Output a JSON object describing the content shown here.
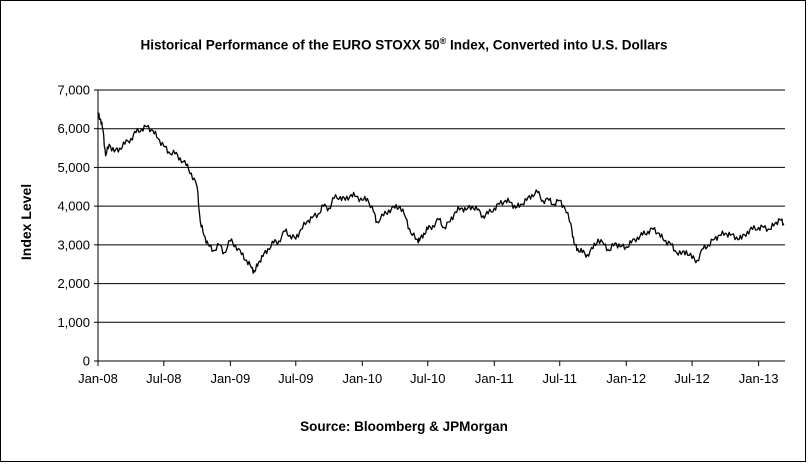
{
  "chart_data": {
    "type": "line",
    "title_main": "Historical Performance of the EURO STOXX 50",
    "title_mark": "®",
    "title_rest": " Index, Converted into U.S. Dollars",
    "xlabel": "",
    "ylabel": "Index Level",
    "source": "Source: Bloomberg & JPMorgan",
    "ylim": [
      0,
      7000
    ],
    "yticks": [
      0,
      1000,
      2000,
      3000,
      4000,
      5000,
      6000,
      7000
    ],
    "ytick_labels": [
      "0",
      "1,000",
      "2,000",
      "3,000",
      "4,000",
      "5,000",
      "6,000",
      "7,000"
    ],
    "xlim": [
      "2008-01-01",
      "2013-03-15"
    ],
    "xticks": [
      "2008-01-01",
      "2008-07-01",
      "2009-01-01",
      "2009-07-01",
      "2010-01-01",
      "2010-07-01",
      "2011-01-01",
      "2011-07-01",
      "2012-01-01",
      "2012-07-01",
      "2013-01-01"
    ],
    "xtick_labels": [
      "Jan-08",
      "Jul-08",
      "Jan-09",
      "Jul-09",
      "Jan-10",
      "Jul-10",
      "Jan-11",
      "Jul-11",
      "Jan-12",
      "Jul-12",
      "Jan-13"
    ],
    "grid": "horizontal",
    "line_color": "#000000",
    "series": [
      {
        "x": [
          "2008-01-02",
          "2008-01-08",
          "2008-01-15",
          "2008-01-22",
          "2008-02-01",
          "2008-02-15",
          "2008-03-01",
          "2008-03-15",
          "2008-04-01",
          "2008-04-15",
          "2008-05-01",
          "2008-05-15",
          "2008-06-01",
          "2008-06-15",
          "2008-07-01",
          "2008-07-15",
          "2008-08-01",
          "2008-08-15",
          "2008-09-01",
          "2008-09-15",
          "2008-10-01",
          "2008-10-10",
          "2008-10-20",
          "2008-11-01",
          "2008-11-15",
          "2008-12-01",
          "2008-12-15",
          "2009-01-01",
          "2009-01-15",
          "2009-02-01",
          "2009-02-15",
          "2009-03-01",
          "2009-03-09",
          "2009-03-20",
          "2009-04-01",
          "2009-04-15",
          "2009-05-01",
          "2009-05-15",
          "2009-06-01",
          "2009-06-15",
          "2009-07-01",
          "2009-07-15",
          "2009-08-01",
          "2009-08-15",
          "2009-09-01",
          "2009-09-15",
          "2009-10-01",
          "2009-10-15",
          "2009-11-01",
          "2009-11-15",
          "2009-12-01",
          "2009-12-15",
          "2010-01-01",
          "2010-01-15",
          "2010-02-01",
          "2010-02-10",
          "2010-03-01",
          "2010-03-15",
          "2010-04-01",
          "2010-04-15",
          "2010-05-01",
          "2010-05-15",
          "2010-06-01",
          "2010-06-08",
          "2010-06-20",
          "2010-07-01",
          "2010-07-15",
          "2010-08-01",
          "2010-08-15",
          "2010-09-01",
          "2010-09-15",
          "2010-10-01",
          "2010-10-15",
          "2010-11-01",
          "2010-11-15",
          "2010-12-01",
          "2010-12-15",
          "2011-01-01",
          "2011-01-15",
          "2011-02-01",
          "2011-02-15",
          "2011-03-01",
          "2011-03-15",
          "2011-04-01",
          "2011-04-15",
          "2011-05-01",
          "2011-05-15",
          "2011-06-01",
          "2011-06-15",
          "2011-07-01",
          "2011-07-15",
          "2011-08-01",
          "2011-08-10",
          "2011-08-20",
          "2011-09-01",
          "2011-09-15",
          "2011-10-01",
          "2011-10-15",
          "2011-11-01",
          "2011-11-15",
          "2011-12-01",
          "2011-12-15",
          "2012-01-01",
          "2012-01-15",
          "2012-02-01",
          "2012-02-15",
          "2012-03-01",
          "2012-03-15",
          "2012-04-01",
          "2012-04-15",
          "2012-05-01",
          "2012-05-15",
          "2012-06-01",
          "2012-06-15",
          "2012-07-01",
          "2012-07-15",
          "2012-08-01",
          "2012-08-15",
          "2012-09-01",
          "2012-09-15",
          "2012-10-01",
          "2012-10-15",
          "2012-11-01",
          "2012-11-15",
          "2012-12-01",
          "2012-12-15",
          "2013-01-01",
          "2013-01-15",
          "2013-02-01",
          "2013-02-15",
          "2013-03-01",
          "2013-03-12"
        ],
        "values": [
          6350,
          6250,
          5950,
          5300,
          5600,
          5400,
          5500,
          5600,
          5750,
          5900,
          6000,
          6050,
          5950,
          5750,
          5550,
          5400,
          5350,
          5250,
          5050,
          4850,
          4500,
          3600,
          3250,
          3000,
          2850,
          3000,
          2800,
          3100,
          3000,
          2750,
          2600,
          2400,
          2300,
          2550,
          2700,
          2900,
          3050,
          3100,
          3350,
          3250,
          3150,
          3400,
          3600,
          3700,
          3800,
          4000,
          3950,
          4200,
          4250,
          4150,
          4300,
          4250,
          4150,
          4200,
          3850,
          3600,
          3750,
          3900,
          3950,
          4000,
          3700,
          3300,
          3150,
          3100,
          3300,
          3400,
          3500,
          3650,
          3450,
          3600,
          3850,
          3950,
          3900,
          4000,
          3900,
          3750,
          3800,
          3950,
          4050,
          4150,
          4100,
          3950,
          4050,
          4150,
          4300,
          4350,
          4150,
          4150,
          4050,
          4150,
          3950,
          3550,
          3000,
          2900,
          2800,
          2750,
          2900,
          3150,
          3000,
          2850,
          3050,
          2950,
          2950,
          3050,
          3200,
          3250,
          3350,
          3400,
          3300,
          3100,
          3050,
          2850,
          2750,
          2850,
          2650,
          2600,
          2900,
          3000,
          3150,
          3250,
          3300,
          3250,
          3200,
          3150,
          3350,
          3400,
          3450,
          3450,
          3400,
          3550,
          3650,
          3550
        ]
      }
    ]
  }
}
